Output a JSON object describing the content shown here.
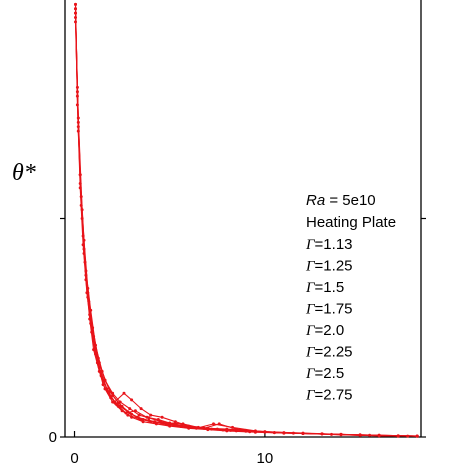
{
  "chart_data": {
    "type": "line",
    "title": "",
    "xlabel": "",
    "ylabel": "θ*",
    "xlim": [
      -0.5,
      18.2
    ],
    "ylim": [
      0,
      1.0
    ],
    "x_ticks": [
      0,
      10
    ],
    "x_tick_labels": [
      "0",
      "10"
    ],
    "y_ticks": [
      0,
      0.5
    ],
    "y_tick_labels": [
      "0",
      ""
    ],
    "grid": false,
    "legend_position": "right",
    "color": "#e8141a",
    "legend": {
      "ra_prefix": "Ra",
      "ra_value": " = 5e10",
      "subtitle": "Heating Plate",
      "gamma_symbol": "Γ",
      "entries": [
        "=1.13",
        "=1.25",
        "=1.5",
        "=1.75",
        "=2.0",
        "=2.25",
        "=2.5",
        "=2.75"
      ]
    },
    "series": [
      {
        "values_x": [
          0.05,
          0.15,
          0.3,
          0.45,
          0.6,
          0.8,
          1.0,
          1.3,
          1.6,
          2.0,
          2.5,
          3.0,
          3.6,
          4.3,
          5.0,
          6.0,
          7.0,
          8.0,
          9.5,
          11.0,
          13.0,
          15.0,
          17.0,
          18.0
        ],
        "values_y": [
          0.98,
          0.8,
          0.6,
          0.46,
          0.36,
          0.27,
          0.2,
          0.15,
          0.11,
          0.08,
          0.06,
          0.045,
          0.035,
          0.03,
          0.025,
          0.02,
          0.017,
          0.014,
          0.011,
          0.009,
          0.007,
          0.005,
          0.003,
          0.002
        ]
      },
      {
        "values_x": [
          0.05,
          0.2,
          0.35,
          0.5,
          0.7,
          0.9,
          1.2,
          1.5,
          1.9,
          2.4,
          2.9,
          3.5,
          4.2,
          5.0,
          5.8,
          6.8,
          7.8,
          9.0,
          10.5,
          12.0,
          14.0,
          16.0,
          18.0
        ],
        "values_y": [
          0.97,
          0.72,
          0.55,
          0.42,
          0.32,
          0.24,
          0.17,
          0.12,
          0.09,
          0.07,
          0.055,
          0.04,
          0.035,
          0.03,
          0.024,
          0.02,
          0.016,
          0.013,
          0.01,
          0.008,
          0.006,
          0.004,
          0.002
        ]
      },
      {
        "values_x": [
          0.05,
          0.15,
          0.3,
          0.5,
          0.7,
          1.0,
          1.3,
          1.7,
          2.1,
          2.6,
          3.0,
          3.5,
          4.0,
          4.6,
          5.3,
          6.0,
          7.0,
          8.0,
          9.0,
          10.0,
          12.0,
          14.0,
          16.0,
          18.0
        ],
        "values_y": [
          0.99,
          0.78,
          0.58,
          0.43,
          0.33,
          0.22,
          0.16,
          0.11,
          0.08,
          0.1,
          0.085,
          0.065,
          0.05,
          0.045,
          0.035,
          0.025,
          0.02,
          0.018,
          0.015,
          0.012,
          0.009,
          0.006,
          0.004,
          0.002
        ]
      },
      {
        "values_x": [
          0.05,
          0.2,
          0.4,
          0.6,
          0.8,
          1.1,
          1.4,
          1.8,
          2.2,
          2.7,
          3.2,
          3.8,
          4.4,
          5.0,
          5.7,
          6.5,
          7.5,
          8.5,
          10.0,
          11.5,
          13.5,
          15.5,
          17.5
        ],
        "values_y": [
          0.96,
          0.7,
          0.5,
          0.37,
          0.28,
          0.2,
          0.14,
          0.1,
          0.075,
          0.055,
          0.06,
          0.045,
          0.04,
          0.032,
          0.03,
          0.022,
          0.018,
          0.014,
          0.011,
          0.009,
          0.006,
          0.004,
          0.002
        ]
      },
      {
        "values_x": [
          0.05,
          0.15,
          0.3,
          0.45,
          0.65,
          0.85,
          1.1,
          1.4,
          1.8,
          2.3,
          2.8,
          3.4,
          4.0,
          4.8,
          5.6,
          6.4,
          7.2,
          8.2,
          9.5,
          11.0,
          13.0,
          15.0,
          17.0
        ],
        "values_y": [
          0.98,
          0.76,
          0.57,
          0.44,
          0.33,
          0.26,
          0.19,
          0.14,
          0.1,
          0.07,
          0.05,
          0.042,
          0.035,
          0.03,
          0.026,
          0.021,
          0.018,
          0.015,
          0.012,
          0.009,
          0.007,
          0.004,
          0.002
        ]
      },
      {
        "values_x": [
          0.05,
          0.2,
          0.35,
          0.55,
          0.75,
          1.0,
          1.3,
          1.6,
          2.0,
          2.4,
          2.9,
          3.4,
          3.9,
          4.5,
          5.2,
          6.0,
          6.8,
          7.6,
          8.5,
          10.0,
          12.0,
          14.0,
          16.0,
          18.0
        ],
        "values_y": [
          0.95,
          0.71,
          0.53,
          0.4,
          0.31,
          0.23,
          0.17,
          0.13,
          0.1,
          0.08,
          0.065,
          0.05,
          0.044,
          0.036,
          0.03,
          0.024,
          0.02,
          0.03,
          0.018,
          0.012,
          0.008,
          0.006,
          0.003,
          0.002
        ]
      },
      {
        "values_x": [
          0.05,
          0.15,
          0.3,
          0.5,
          0.7,
          0.95,
          1.25,
          1.6,
          2.0,
          2.5,
          3.0,
          3.6,
          4.2,
          4.9,
          5.6,
          6.4,
          7.3,
          8.3,
          9.5,
          11.0,
          13.0,
          15.0,
          17.0
        ],
        "values_y": [
          0.99,
          0.79,
          0.6,
          0.45,
          0.34,
          0.25,
          0.18,
          0.13,
          0.095,
          0.07,
          0.052,
          0.04,
          0.034,
          0.028,
          0.024,
          0.02,
          0.03,
          0.022,
          0.014,
          0.01,
          0.007,
          0.004,
          0.002
        ]
      },
      {
        "values_x": [
          0.05,
          0.2,
          0.4,
          0.6,
          0.85,
          1.1,
          1.45,
          1.85,
          2.3,
          2.8,
          3.3,
          3.9,
          4.6,
          5.3,
          6.1,
          7.0,
          8.0,
          9.2,
          10.5,
          12.0,
          14.0,
          16.0,
          18.0
        ],
        "values_y": [
          0.97,
          0.73,
          0.52,
          0.38,
          0.29,
          0.21,
          0.15,
          0.105,
          0.078,
          0.058,
          0.045,
          0.038,
          0.032,
          0.027,
          0.022,
          0.018,
          0.015,
          0.012,
          0.01,
          0.008,
          0.005,
          0.003,
          0.002
        ]
      }
    ]
  }
}
